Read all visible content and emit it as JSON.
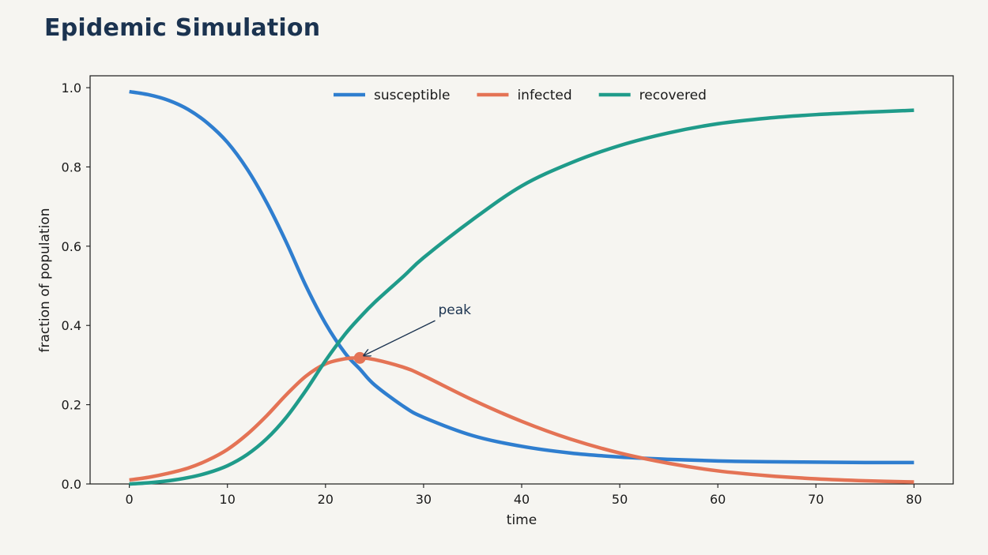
{
  "page": {
    "title": "Epidemic Simulation"
  },
  "chart_data": {
    "type": "line",
    "title": "Epidemic Simulation",
    "xlabel": "time",
    "ylabel": "fraction of population",
    "xlim": [
      -4,
      84
    ],
    "ylim": [
      0,
      1.03
    ],
    "xticks": [
      0,
      10,
      20,
      30,
      40,
      50,
      60,
      70,
      80
    ],
    "yticks": [
      0.0,
      0.2,
      0.4,
      0.6,
      0.8,
      1.0
    ],
    "ytick_labels": [
      "0.0",
      "0.2",
      "0.4",
      "0.6",
      "0.8",
      "1.0"
    ],
    "grid": false,
    "legend_position": "top-center",
    "x": [
      0,
      2,
      4,
      6,
      8,
      10,
      12,
      14,
      16,
      18,
      20,
      22,
      23.5,
      25,
      28,
      30,
      35,
      40,
      45,
      50,
      55,
      60,
      65,
      70,
      75,
      80
    ],
    "series": [
      {
        "name": "susceptible",
        "color": "#2f7ecf",
        "values": [
          0.99,
          0.982,
          0.968,
          0.945,
          0.91,
          0.862,
          0.795,
          0.71,
          0.61,
          0.5,
          0.405,
          0.33,
          0.29,
          0.25,
          0.195,
          0.168,
          0.122,
          0.095,
          0.078,
          0.068,
          0.062,
          0.058,
          0.056,
          0.055,
          0.054,
          0.054
        ]
      },
      {
        "name": "infected",
        "color": "#e47355",
        "values": [
          0.01,
          0.017,
          0.027,
          0.04,
          0.06,
          0.087,
          0.125,
          0.172,
          0.225,
          0.272,
          0.303,
          0.316,
          0.318,
          0.314,
          0.294,
          0.273,
          0.212,
          0.158,
          0.113,
          0.078,
          0.052,
          0.033,
          0.021,
          0.013,
          0.008,
          0.005
        ]
      },
      {
        "name": "recovered",
        "color": "#1f9b8a",
        "values": [
          0.0,
          0.003,
          0.008,
          0.016,
          0.028,
          0.046,
          0.074,
          0.114,
          0.168,
          0.236,
          0.311,
          0.378,
          0.42,
          0.458,
          0.525,
          0.571,
          0.667,
          0.752,
          0.81,
          0.854,
          0.886,
          0.909,
          0.923,
          0.932,
          0.938,
          0.943
        ]
      }
    ],
    "annotations": [
      {
        "text": "peak",
        "point": [
          23.5,
          0.318
        ],
        "text_at": [
          31.5,
          0.44
        ],
        "color": "#1b3350",
        "marker_color": "#e47355"
      }
    ]
  }
}
